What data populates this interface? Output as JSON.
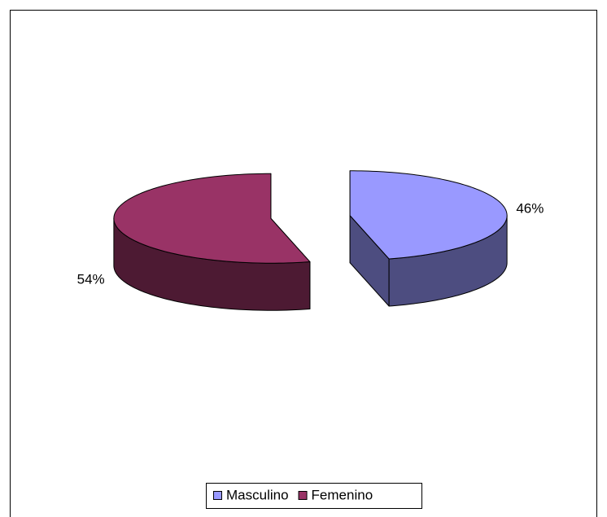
{
  "chart_data": {
    "type": "pie",
    "categories": [
      "Masculino",
      "Femenino"
    ],
    "values": [
      46,
      54
    ],
    "value_labels": [
      "46%",
      "54%"
    ],
    "colors": [
      "#9999ff",
      "#993366"
    ],
    "legend": "bottom"
  }
}
